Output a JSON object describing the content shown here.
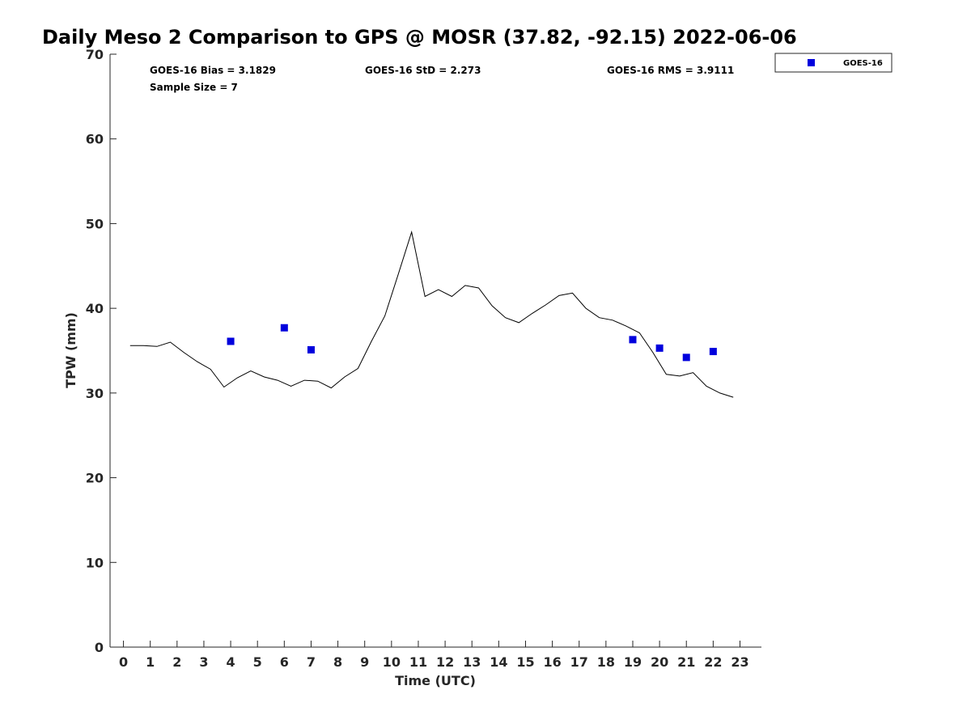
{
  "chart_data": {
    "type": "line",
    "title": "Daily Meso 2 Comparison to GPS @ MOSR (37.82, -92.15) 2022-06-06",
    "xlabel": "Time (UTC)",
    "ylabel": "TPW (mm)",
    "xlim": [
      -0.5,
      23.8
    ],
    "ylim": [
      0,
      70
    ],
    "x_ticks": [
      0,
      1,
      2,
      3,
      4,
      5,
      6,
      7,
      8,
      9,
      10,
      11,
      12,
      13,
      14,
      15,
      16,
      17,
      18,
      19,
      20,
      21,
      22,
      23
    ],
    "y_ticks": [
      0,
      10,
      20,
      30,
      40,
      50,
      60,
      70
    ],
    "grid": false,
    "legend_position": "top-right-outside",
    "stats": {
      "bias": "GOES-16 Bias = 3.1829",
      "std": "GOES-16 StD = 2.273",
      "rms": "GOES-16 RMS = 3.9111",
      "sample_size": "Sample Size = 7"
    },
    "series": [
      {
        "kind": "line",
        "color": "#000000",
        "x": [
          0.25,
          0.75,
          1.25,
          1.75,
          2.25,
          2.75,
          3.25,
          3.75,
          4.25,
          4.75,
          5.25,
          5.75,
          6.25,
          6.75,
          7.25,
          7.75,
          8.25,
          8.75,
          9.25,
          9.75,
          10.25,
          10.75,
          11.25,
          11.75,
          12.25,
          12.75,
          13.25,
          13.75,
          14.25,
          14.75,
          15.25,
          15.75,
          16.25,
          16.75,
          17.25,
          17.75,
          18.25,
          18.75,
          19.25,
          19.75,
          20.25,
          20.75,
          21.25,
          21.75,
          22.25,
          22.75
        ],
        "values": [
          35.6,
          35.6,
          35.5,
          36.0,
          34.8,
          33.7,
          32.8,
          30.7,
          31.8,
          32.6,
          31.9,
          31.5,
          30.8,
          31.5,
          31.4,
          30.6,
          31.9,
          32.9,
          36.1,
          39.1,
          44.0,
          49.0,
          41.4,
          42.2,
          41.4,
          42.7,
          42.4,
          40.3,
          38.9,
          38.3,
          39.4,
          40.4,
          41.5,
          41.8,
          40.0,
          38.9,
          38.6,
          37.9,
          37.1,
          34.8,
          32.2,
          32.0,
          32.4,
          30.8,
          30.0,
          29.5
        ]
      },
      {
        "name": "GOES-16",
        "kind": "scatter",
        "color": "#0000dd",
        "x": [
          4,
          6,
          7,
          19,
          20,
          21,
          22
        ],
        "values": [
          36.1,
          37.7,
          35.1,
          36.3,
          35.3,
          34.2,
          34.9
        ]
      }
    ]
  }
}
